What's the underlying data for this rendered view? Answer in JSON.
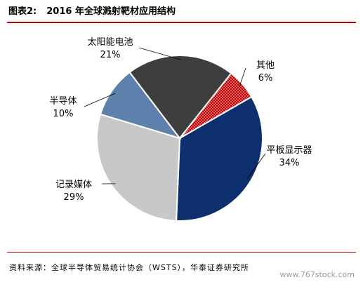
{
  "header": {
    "fig_label": "图表2:",
    "title": "2016 年全球溅射靶材应用结构"
  },
  "chart_data": {
    "type": "pie",
    "title": "2016 年全球溅射靶材应用结构",
    "slices": [
      {
        "label": "平板显示器",
        "value": 34,
        "value_label": "34%",
        "color": "#0e2f6d",
        "pattern": "none"
      },
      {
        "label": "记录媒体",
        "value": 29,
        "value_label": "29%",
        "color": "#c8c8c8",
        "pattern": "none"
      },
      {
        "label": "半导体",
        "value": 10,
        "value_label": "10%",
        "color": "#5d80ac",
        "pattern": "none"
      },
      {
        "label": "太阳能电池",
        "value": 21,
        "value_label": "21%",
        "color": "#3e3e3e",
        "pattern": "none"
      },
      {
        "label": "其他",
        "value": 6,
        "value_label": "6%",
        "color": "#c00000",
        "pattern": "dots"
      }
    ],
    "start_angle_deg": 60,
    "direction": "clockwise",
    "legend": "none"
  },
  "footer": {
    "source": "资料来源：全球半导体贸易统计协会（WSTS），华泰证券研究所",
    "watermark": "www.767stock.com"
  }
}
